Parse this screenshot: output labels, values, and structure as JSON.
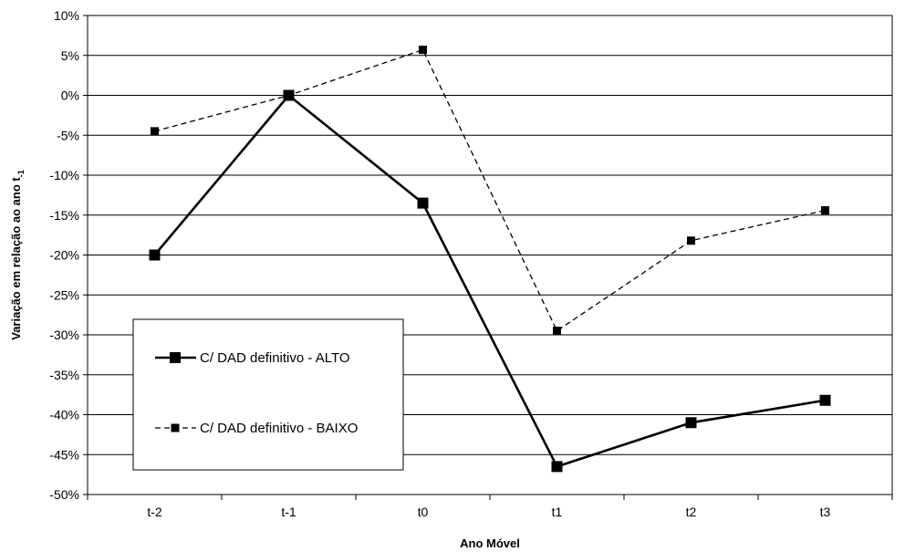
{
  "chart_data": {
    "type": "line",
    "title": "",
    "xlabel": "Ano Móvel",
    "ylabel": "Variação em relação ao ano t",
    "ylabel_subscript": "-1",
    "categories": [
      "t-2",
      "t-1",
      "t0",
      "t1",
      "t2",
      "t3"
    ],
    "ylim": [
      -50,
      10
    ],
    "y_ticks": [
      10,
      5,
      0,
      -5,
      -10,
      -15,
      -20,
      -25,
      -30,
      -35,
      -40,
      -45,
      -50
    ],
    "y_tick_labels": [
      "10%",
      "5%",
      "0%",
      "-5%",
      "-10%",
      "-15%",
      "-20%",
      "-25%",
      "-30%",
      "-35%",
      "-40%",
      "-45%",
      "-50%"
    ],
    "grid": "horizontal",
    "legend_position": "bottom-left inside",
    "series": [
      {
        "name": "C/ DAD definitivo - ALTO",
        "values": [
          -20.0,
          0.0,
          -13.5,
          -46.5,
          -41.0,
          -38.2
        ],
        "style": "solid",
        "color": "#000000"
      },
      {
        "name": "C/ DAD definitivo - BAIXO",
        "values": [
          -4.5,
          0.0,
          5.7,
          -29.5,
          -18.2,
          -14.4
        ],
        "style": "dashed",
        "color": "#000000"
      }
    ]
  }
}
